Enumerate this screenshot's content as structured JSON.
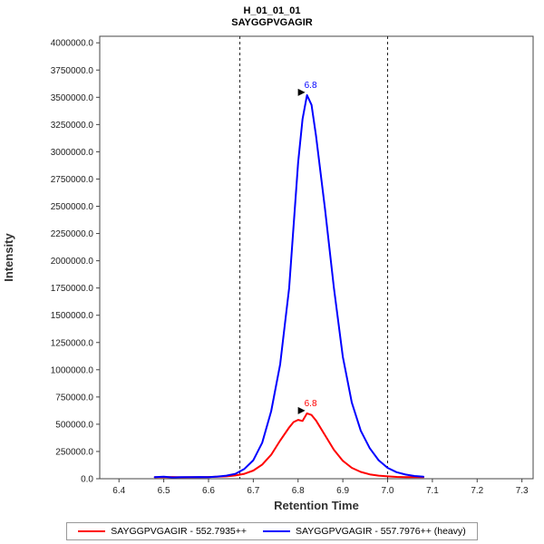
{
  "chart_data": {
    "type": "line",
    "title": "H_01_01_01",
    "subtitle": "SAYGGPVGAGIR",
    "xlabel": "Retention Time",
    "ylabel": "Intensity",
    "x_range": [
      6.357,
      7.325
    ],
    "y_range": [
      0,
      4060000
    ],
    "x_ticks": [
      6.4,
      6.5,
      6.6,
      6.7,
      6.8,
      6.9,
      7.0,
      7.1,
      7.2,
      7.3
    ],
    "y_ticks": [
      0,
      250000,
      500000,
      750000,
      1000000,
      1250000,
      1500000,
      1750000,
      2000000,
      2250000,
      2500000,
      2750000,
      3000000,
      3250000,
      3500000,
      3750000,
      4000000
    ],
    "grid": false,
    "integration_boundaries": [
      6.67,
      7.0
    ],
    "boundary_line_style": "dashed",
    "series": [
      {
        "name": "SAYGGPVGAGIR - 552.7935++",
        "color": "#FF0000",
        "peak_label": "6.8",
        "peak": {
          "x": 6.82,
          "y": 600000
        },
        "points": [
          [
            6.48,
            15000
          ],
          [
            6.5,
            14000
          ],
          [
            6.52,
            16000
          ],
          [
            6.54,
            13000
          ],
          [
            6.56,
            15000
          ],
          [
            6.58,
            14000
          ],
          [
            6.6,
            16000
          ],
          [
            6.62,
            18000
          ],
          [
            6.64,
            22000
          ],
          [
            6.66,
            30000
          ],
          [
            6.68,
            45000
          ],
          [
            6.7,
            75000
          ],
          [
            6.72,
            130000
          ],
          [
            6.74,
            220000
          ],
          [
            6.76,
            350000
          ],
          [
            6.78,
            470000
          ],
          [
            6.79,
            520000
          ],
          [
            6.8,
            540000
          ],
          [
            6.81,
            530000
          ],
          [
            6.82,
            600000
          ],
          [
            6.83,
            585000
          ],
          [
            6.84,
            535000
          ],
          [
            6.86,
            400000
          ],
          [
            6.88,
            265000
          ],
          [
            6.9,
            165000
          ],
          [
            6.92,
            100000
          ],
          [
            6.94,
            62000
          ],
          [
            6.96,
            40000
          ],
          [
            6.98,
            28000
          ],
          [
            7.0,
            22000
          ],
          [
            7.02,
            17000
          ],
          [
            7.04,
            15000
          ],
          [
            7.06,
            16000
          ],
          [
            7.08,
            14000
          ]
        ]
      },
      {
        "name": "SAYGGPVGAGIR - 557.7976++ (heavy)",
        "color": "#0000FF",
        "peak_label": "6.8",
        "peak": {
          "x": 6.82,
          "y": 3520000
        },
        "points": [
          [
            6.48,
            15000
          ],
          [
            6.5,
            18000
          ],
          [
            6.52,
            12000
          ],
          [
            6.54,
            15000
          ],
          [
            6.56,
            14000
          ],
          [
            6.58,
            16000
          ],
          [
            6.6,
            15000
          ],
          [
            6.62,
            20000
          ],
          [
            6.64,
            28000
          ],
          [
            6.66,
            45000
          ],
          [
            6.68,
            90000
          ],
          [
            6.7,
            170000
          ],
          [
            6.72,
            330000
          ],
          [
            6.74,
            620000
          ],
          [
            6.76,
            1050000
          ],
          [
            6.78,
            1750000
          ],
          [
            6.8,
            2900000
          ],
          [
            6.81,
            3300000
          ],
          [
            6.82,
            3520000
          ],
          [
            6.83,
            3430000
          ],
          [
            6.84,
            3150000
          ],
          [
            6.86,
            2480000
          ],
          [
            6.88,
            1750000
          ],
          [
            6.9,
            1120000
          ],
          [
            6.92,
            700000
          ],
          [
            6.94,
            440000
          ],
          [
            6.96,
            280000
          ],
          [
            6.98,
            170000
          ],
          [
            7.0,
            100000
          ],
          [
            7.02,
            60000
          ],
          [
            7.04,
            38000
          ],
          [
            7.06,
            25000
          ],
          [
            7.08,
            18000
          ]
        ]
      }
    ]
  },
  "legend": {
    "entries": [
      {
        "label": "SAYGGPVGAGIR - 552.7935++",
        "color": "#FF0000"
      },
      {
        "label": "SAYGGPVGAGIR - 557.7976++ (heavy)",
        "color": "#0000FF"
      }
    ]
  },
  "colors": {
    "frame": "#444444",
    "tick_text": "#222222",
    "axis_label": "#333333",
    "boundary": "#222222",
    "annotation_arrow": "#000000"
  }
}
